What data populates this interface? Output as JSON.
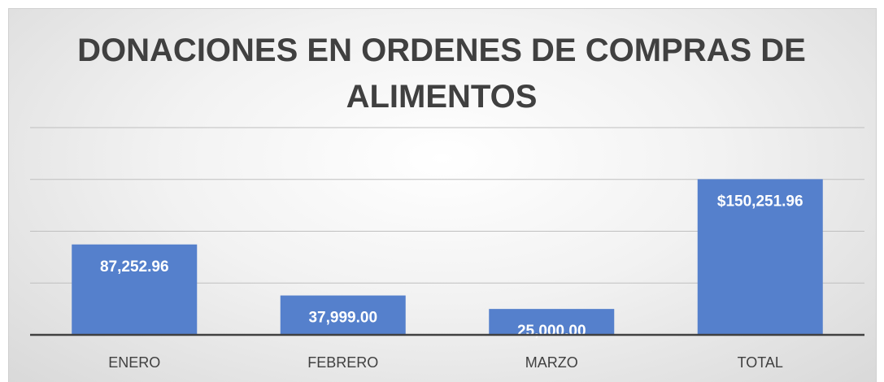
{
  "chart_data": {
    "type": "bar",
    "title": "DONACIONES EN ORDENES DE COMPRAS DE ALIMENTOS",
    "categories": [
      "ENERO",
      "FEBRERO",
      "MARZO",
      "TOTAL"
    ],
    "values": [
      87252.96,
      37999.0,
      25000.0,
      150251.96
    ],
    "value_labels": [
      "87,252.96",
      "37,999.00",
      "25,000.00",
      "$150,251.96"
    ],
    "color": "#5580cc",
    "ylim": [
      0,
      200000
    ],
    "yticks": [
      0,
      50000,
      100000,
      150000,
      200000
    ],
    "grid": true
  }
}
